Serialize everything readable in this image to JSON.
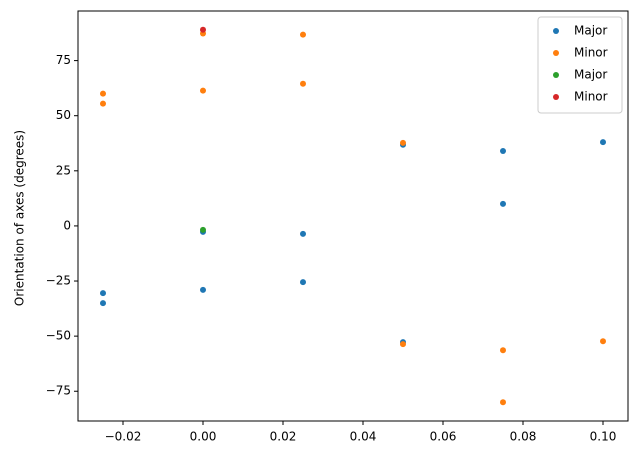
{
  "chart_data": {
    "type": "scatter",
    "y_label": "Orientation of axes (degrees)",
    "xlim": [
      -0.03125,
      0.10625
    ],
    "ylim": [
      -88.5,
      97.5
    ],
    "xticks": [
      {
        "value": -0.02,
        "label": "−0.02"
      },
      {
        "value": 0,
        "label": "0.00"
      },
      {
        "value": 0.02,
        "label": "0.02"
      },
      {
        "value": 0.04,
        "label": "0.04"
      },
      {
        "value": 0.06,
        "label": "0.06"
      },
      {
        "value": 0.08,
        "label": "0.08"
      },
      {
        "value": 0.1,
        "label": "0.10"
      }
    ],
    "yticks": [
      {
        "value": -75,
        "label": "−75"
      },
      {
        "value": -50,
        "label": "−50"
      },
      {
        "value": -25,
        "label": "−25"
      },
      0,
      25,
      50,
      75
    ],
    "legend": "upper right",
    "series": [
      {
        "name": "Major",
        "color": "#1f77b4",
        "x": [
          -0.025,
          -0.025,
          0,
          0,
          0.025,
          0.025,
          0.05,
          0.05,
          0.075,
          0.075,
          0.1
        ],
        "values": [
          -30.5,
          -35,
          -2.7,
          -29,
          -3.6,
          -25.5,
          36.8,
          -52.7,
          34,
          10,
          38
        ]
      },
      {
        "name": "Minor",
        "color": "#ff7f0e",
        "x": [
          -0.025,
          -0.025,
          0,
          0,
          0.025,
          0.025,
          0.05,
          0.05,
          0.075,
          0.075,
          0.1
        ],
        "values": [
          60,
          55.5,
          87.3,
          61.4,
          86.8,
          64.5,
          37.7,
          -53.6,
          -56.4,
          -80,
          -52.3
        ]
      },
      {
        "name": "Major",
        "color": "#2ca02c",
        "x": [
          0
        ],
        "values": [
          -1.8
        ]
      },
      {
        "name": "Minor",
        "color": "#d62728",
        "x": [
          0
        ],
        "values": [
          89
        ]
      }
    ]
  }
}
